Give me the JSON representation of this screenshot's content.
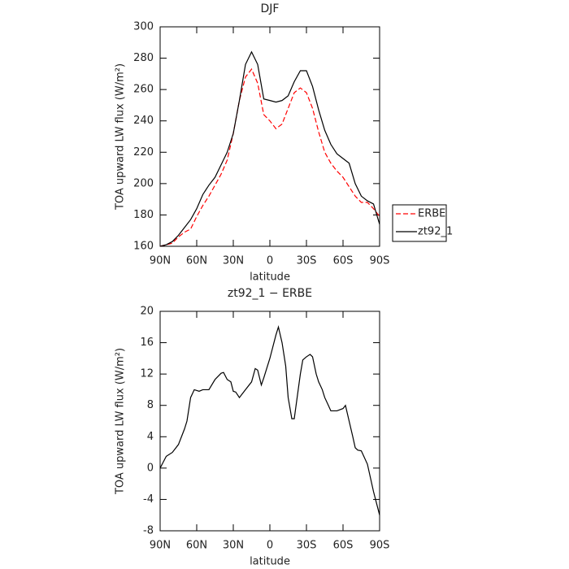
{
  "chart_data": [
    {
      "type": "line",
      "title": "DJF",
      "xlabel": "latitude",
      "ylabel": "TOA upward LW flux (W/m²)",
      "x": [
        90,
        85,
        80,
        75,
        70,
        65,
        60,
        55,
        50,
        45,
        40,
        35,
        30,
        25,
        20,
        15,
        10,
        5,
        0,
        -5,
        -10,
        -15,
        -20,
        -25,
        -30,
        -35,
        -40,
        -45,
        -50,
        -55,
        -60,
        -65,
        -70,
        -75,
        -80,
        -85,
        -90
      ],
      "series": [
        {
          "name": "ERBE",
          "color": "#ff0000",
          "dash": true,
          "values": [
            160,
            161,
            162,
            166,
            169,
            171,
            179,
            186,
            192,
            199,
            206,
            215,
            232,
            253,
            268,
            273,
            264,
            244,
            240,
            235,
            238,
            248,
            258,
            261,
            258,
            248,
            233,
            220,
            213,
            208,
            204,
            198,
            192,
            188,
            188,
            184,
            179
          ]
        },
        {
          "name": "zt92_1",
          "color": "#000000",
          "dash": false,
          "values": [
            160,
            161,
            163,
            167,
            172,
            177,
            184,
            193,
            199,
            204,
            212,
            220,
            232,
            253,
            276,
            284,
            276,
            254,
            253,
            252,
            253,
            256,
            265,
            272,
            272,
            262,
            247,
            234,
            225,
            219,
            216,
            213,
            200,
            192,
            189,
            187,
            174
          ]
        }
      ],
      "xlim": [
        90,
        -90
      ],
      "xticks": [
        {
          "value": 90,
          "label": "90N"
        },
        {
          "value": 60,
          "label": "60N"
        },
        {
          "value": 30,
          "label": "30N"
        },
        0,
        {
          "value": -30,
          "label": "30S"
        },
        {
          "value": -60,
          "label": "60S"
        },
        {
          "value": -90,
          "label": "90S"
        }
      ],
      "ylim": [
        160,
        300
      ],
      "yticks": [
        160,
        180,
        200,
        220,
        240,
        260,
        280,
        300
      ],
      "legend": "right"
    },
    {
      "type": "line",
      "title": "zt92_1 − ERBE",
      "xlabel": "latitude",
      "ylabel": "TOA upward LW flux (W/m²)",
      "x": [
        90,
        85,
        80,
        75,
        70,
        68,
        65,
        62,
        58,
        55,
        50,
        45,
        40,
        38,
        35,
        32,
        30,
        28,
        25,
        20,
        15,
        12,
        10,
        7,
        5,
        0,
        -5,
        -7,
        -10,
        -13,
        -15,
        -18,
        -20,
        -25,
        -27,
        -30,
        -33,
        -35,
        -38,
        -40,
        -43,
        -45,
        -48,
        -50,
        -55,
        -60,
        -62,
        -65,
        -68,
        -70,
        -72,
        -75,
        -80,
        -85,
        -90
      ],
      "values": [
        0,
        1.5,
        2,
        3,
        5,
        6,
        9,
        10,
        9.8,
        10,
        10,
        11.3,
        12.1,
        12.2,
        11.3,
        11,
        9.8,
        9.7,
        9,
        10,
        11,
        12.7,
        12.5,
        10.6,
        11.5,
        14,
        17,
        18,
        16,
        13,
        9,
        6.3,
        6.3,
        12,
        13.8,
        14.2,
        14.5,
        14.2,
        12,
        11,
        10,
        9,
        8,
        7.3,
        7.3,
        7.6,
        8,
        6,
        4,
        2.6,
        2.3,
        2.2,
        0.5,
        -3,
        -6
      ],
      "color": "#000000",
      "xlim": [
        90,
        -90
      ],
      "xticks": [
        {
          "value": 90,
          "label": "90N"
        },
        {
          "value": 60,
          "label": "60N"
        },
        {
          "value": 30,
          "label": "30N"
        },
        0,
        {
          "value": -30,
          "label": "30S"
        },
        {
          "value": -60,
          "label": "60S"
        },
        {
          "value": -90,
          "label": "90S"
        }
      ],
      "ylim": [
        -8,
        20
      ],
      "yticks": [
        -8,
        -4,
        0,
        4,
        8,
        12,
        16,
        20
      ]
    }
  ]
}
